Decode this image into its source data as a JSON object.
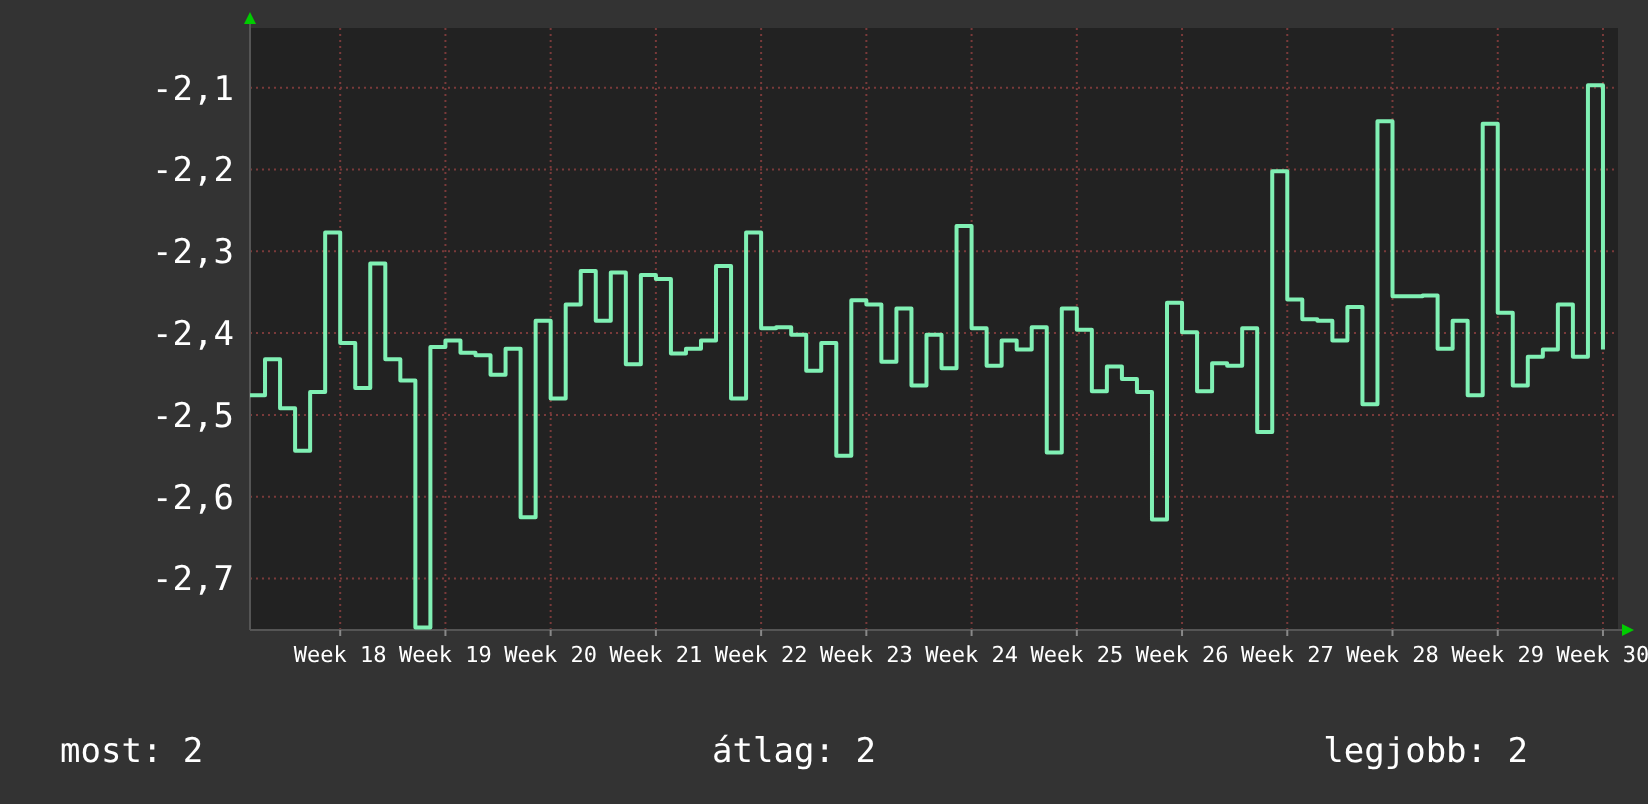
{
  "chart_data": {
    "type": "step",
    "ylim": [
      -2.763,
      -2.027
    ],
    "categories": [
      null,
      null,
      null,
      null,
      null,
      null,
      "Week 18",
      null,
      null,
      null,
      null,
      null,
      null,
      "Week 19",
      null,
      null,
      null,
      null,
      null,
      null,
      "Week 20",
      null,
      null,
      null,
      null,
      null,
      null,
      "Week 21",
      null,
      null,
      null,
      null,
      null,
      null,
      "Week 22",
      null,
      null,
      null,
      null,
      null,
      null,
      "Week 23",
      null,
      null,
      null,
      null,
      null,
      null,
      "Week 24",
      null,
      null,
      null,
      null,
      null,
      null,
      "Week 25",
      null,
      null,
      null,
      null,
      null,
      null,
      "Week 26",
      null,
      null,
      null,
      null,
      null,
      null,
      "Week 27",
      null,
      null,
      null,
      null,
      null,
      null,
      "Week 28",
      null,
      null,
      null,
      null,
      null,
      null,
      "Week 29",
      null,
      null,
      null,
      null,
      null,
      null,
      "Week 30"
    ],
    "yticks": [
      {
        "value": -2.7,
        "label": "-2,7"
      },
      {
        "value": -2.6,
        "label": "-2,6"
      },
      {
        "value": -2.5,
        "label": "-2,5"
      },
      {
        "value": -2.4,
        "label": "-2,4"
      },
      {
        "value": -2.3,
        "label": "-2,3"
      },
      {
        "value": -2.2,
        "label": "-2,2"
      },
      {
        "value": -2.1,
        "label": "-2,1"
      }
    ],
    "grid": true,
    "annotations": [
      "most: 2",
      "átlag: 2",
      "legjobb: 2"
    ],
    "series": [
      {
        "color": "#80f0b4",
        "values": [
          -2.476,
          -2.432,
          -2.492,
          -2.544,
          -2.472,
          -2.277,
          -2.412,
          -2.467,
          -2.315,
          -2.432,
          -2.458,
          -2.76,
          -2.417,
          -2.409,
          -2.424,
          -2.427,
          -2.451,
          -2.419,
          -2.625,
          -2.385,
          -2.48,
          -2.365,
          -2.324,
          -2.385,
          -2.326,
          -2.438,
          -2.329,
          -2.334,
          -2.425,
          -2.419,
          -2.409,
          -2.318,
          -2.48,
          -2.277,
          -2.394,
          -2.393,
          -2.402,
          -2.446,
          -2.412,
          -2.55,
          -2.36,
          -2.365,
          -2.435,
          -2.37,
          -2.464,
          -2.402,
          -2.443,
          -2.269,
          -2.394,
          -2.44,
          -2.409,
          -2.42,
          -2.393,
          -2.546,
          -2.37,
          -2.396,
          -2.471,
          -2.441,
          -2.456,
          -2.472,
          -2.628,
          -2.363,
          -2.399,
          -2.471,
          -2.437,
          -2.44,
          -2.394,
          -2.521,
          -2.202,
          -2.359,
          -2.383,
          -2.385,
          -2.409,
          -2.368,
          -2.487,
          -2.141,
          -2.355,
          -2.355,
          -2.354,
          -2.419,
          -2.385,
          -2.476,
          -2.144,
          -2.375,
          -2.464,
          -2.429,
          -2.42,
          -2.365,
          -2.429,
          -2.097,
          -2.42
        ]
      }
    ]
  }
}
